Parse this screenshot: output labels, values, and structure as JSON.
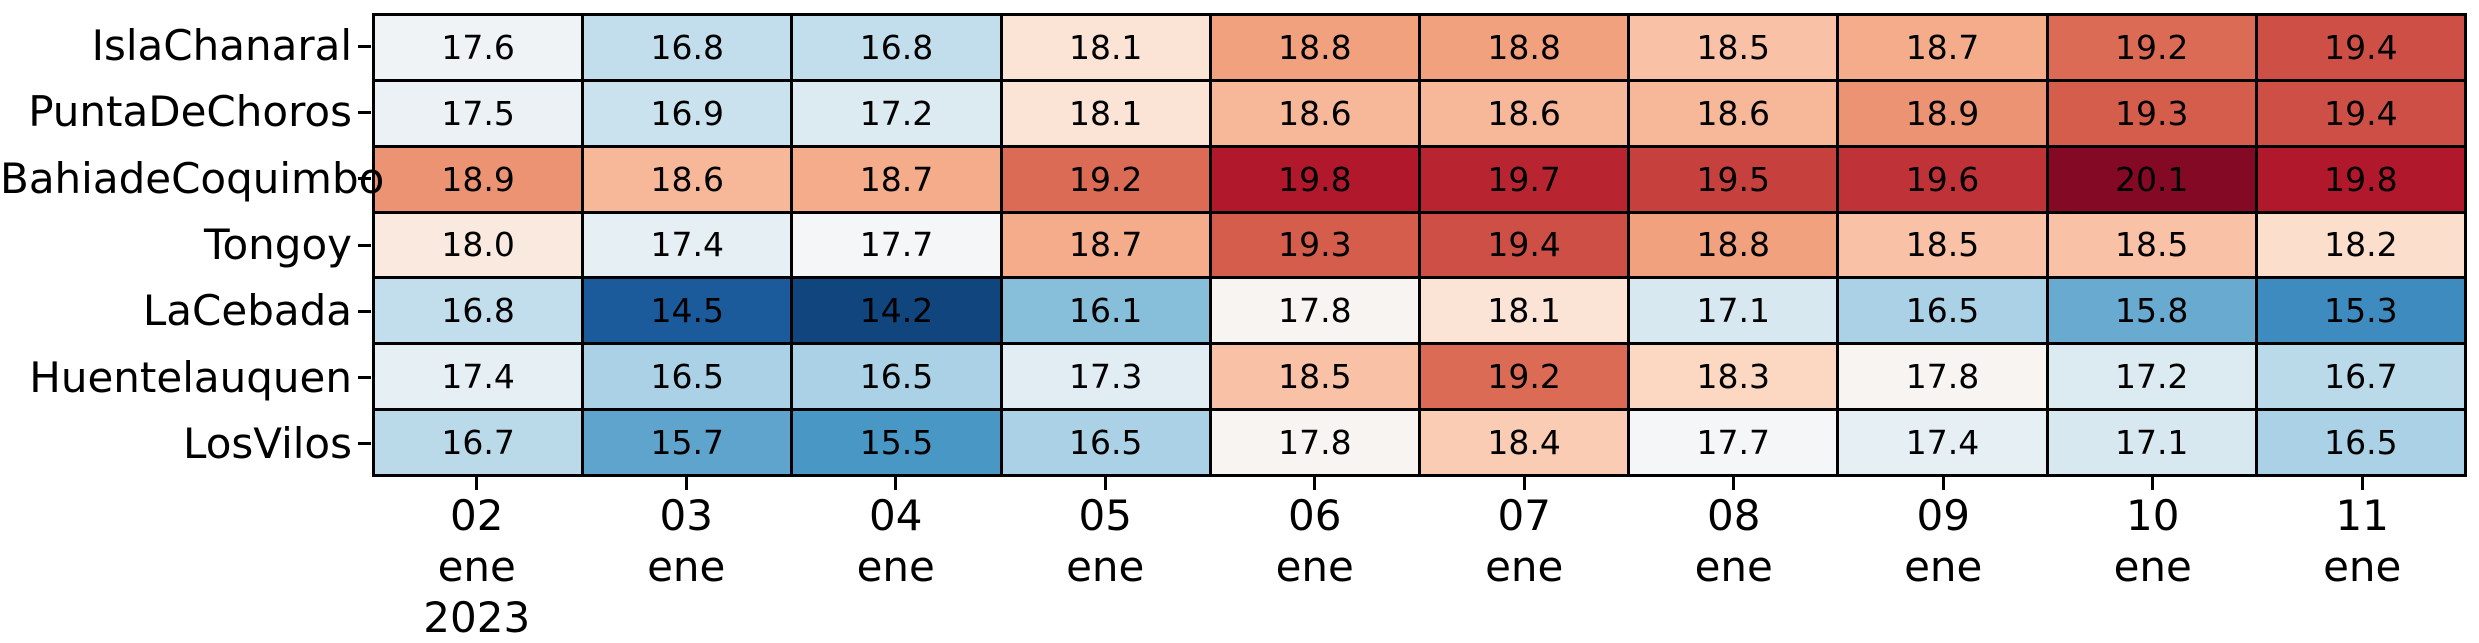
{
  "figure": {
    "background_color": "#ffffff",
    "gridline_color": "#000000",
    "annotation_text_color": "#000000",
    "tick_label_color": "#000000"
  },
  "chart_data": {
    "type": "heatmap",
    "title": "",
    "xlabel": "",
    "ylabel": "",
    "legend_position": "none",
    "grid": "black borders around every cell",
    "rows": [
      "IslaChanaral",
      "PuntaDeChoros",
      "BahiadeCoquimbo",
      "Tongoy",
      "LaCebada",
      "Huentelauquen",
      "LosVilos"
    ],
    "columns": [
      [
        "02",
        "ene",
        "2023"
      ],
      [
        "03",
        "ene"
      ],
      [
        "04",
        "ene"
      ],
      [
        "05",
        "ene"
      ],
      [
        "06",
        "ene"
      ],
      [
        "07",
        "ene"
      ],
      [
        "08",
        "ene"
      ],
      [
        "09",
        "ene"
      ],
      [
        "10",
        "ene"
      ],
      [
        "11",
        "ene"
      ]
    ],
    "values": [
      [
        17.6,
        16.8,
        16.8,
        18.1,
        18.8,
        18.8,
        18.5,
        18.7,
        19.2,
        19.4
      ],
      [
        17.5,
        16.9,
        17.2,
        18.1,
        18.6,
        18.6,
        18.6,
        18.9,
        19.3,
        19.4
      ],
      [
        18.9,
        18.6,
        18.7,
        19.2,
        19.8,
        19.7,
        19.5,
        19.6,
        20.1,
        19.8
      ],
      [
        18.0,
        17.4,
        17.7,
        18.7,
        19.3,
        19.4,
        18.8,
        18.5,
        18.5,
        18.2
      ],
      [
        16.8,
        14.5,
        14.2,
        16.1,
        17.8,
        18.1,
        17.1,
        16.5,
        15.8,
        15.3
      ],
      [
        17.4,
        16.5,
        16.5,
        17.3,
        18.5,
        19.2,
        18.3,
        17.8,
        17.2,
        16.7
      ],
      [
        16.7,
        15.7,
        15.5,
        16.5,
        17.8,
        18.4,
        17.7,
        17.4,
        17.1,
        16.5
      ]
    ],
    "value_format": "0.1f",
    "colormap": {
      "name": "RdBu_r",
      "stops": [
        "#053061",
        "#2166ac",
        "#4393c3",
        "#92c5de",
        "#d1e5f0",
        "#f7f7f7",
        "#fddbc7",
        "#f4a582",
        "#d6604d",
        "#b2182b",
        "#67001f"
      ]
    },
    "color_scale": {
      "vmin": 13.9,
      "center": 17.75,
      "vmax": 20.3
    },
    "value_range_shown": {
      "min": 14.2,
      "max": 20.1
    }
  }
}
